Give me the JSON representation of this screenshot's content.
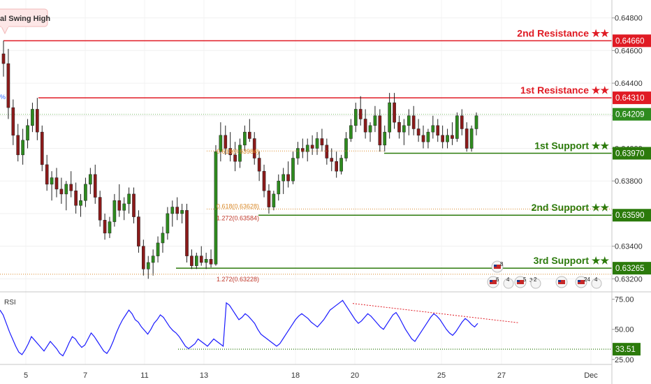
{
  "chart_data": {
    "type": "candlestick",
    "price_axis": {
      "ticks": [
        "0.64800",
        "0.64600",
        "0.64400",
        "0.64200",
        "0.64000",
        "0.63800",
        "0.63600",
        "0.63400",
        "0.63200"
      ],
      "visible_range": [
        0.6312,
        0.6491
      ]
    },
    "time_axis": {
      "ticks": [
        "5",
        "7",
        "11",
        "13",
        "18",
        "20",
        "25",
        "27",
        "Dec"
      ]
    },
    "levels": [
      {
        "label": "2nd Resistance ★★",
        "value": 0.6466,
        "price_tag": "0.64660",
        "color": "#e01b24",
        "role": "resistance"
      },
      {
        "label": "1st Resistance ★★",
        "value": 0.6431,
        "price_tag": "0.64310",
        "color": "#e01b24",
        "role": "resistance"
      },
      {
        "label": "1st Support ★★",
        "value": 0.6397,
        "price_tag": "0.63970",
        "color": "#2b7a0b",
        "role": "support"
      },
      {
        "label": "2nd Support ★★",
        "value": 0.6359,
        "price_tag": "0.63590",
        "color": "#2b7a0b",
        "role": "support"
      },
      {
        "label": "3rd Support ★★",
        "value": 0.63265,
        "price_tag": "0.63265",
        "color": "#2b7a0b",
        "role": "support"
      }
    ],
    "current_price": {
      "value": 0.64209,
      "price_tag": "0.64209",
      "color": "#2e8b1e"
    },
    "fib_labels": [
      {
        "text": "0.618(0.63984)",
        "color": "#d98a2b"
      },
      {
        "text": "0.618(0.63628)",
        "color": "#d98a2b"
      },
      {
        "text": "1.272(0.63584)",
        "color": "#c0392b"
      },
      {
        "text": "1.272(0.63228)",
        "color": "#c0392b"
      }
    ],
    "callout": {
      "text": "al Swing High"
    },
    "left_edge_marker": "%",
    "event_badges": [
      {
        "id": "e1",
        "count": "8"
      },
      {
        "id": "e2",
        "count": "6",
        "extra": "4"
      },
      {
        "id": "e3",
        "count": "5",
        "mid": "3",
        "extra": "2"
      },
      {
        "id": "e4",
        "count": ""
      },
      {
        "id": "e5",
        "count": "24",
        "extra": "4"
      }
    ],
    "rsi": {
      "label": "RSI",
      "ticks": [
        "75.00",
        "50.00",
        "25.00"
      ],
      "support_tag": "33.51",
      "support_value": 33.51,
      "line_color": "#1a1aff",
      "trendline_color": "#e01b24"
    },
    "candles": [
      [
        0.6458,
        0.6466,
        0.6444,
        0.6452
      ],
      [
        0.6452,
        0.6461,
        0.6418,
        0.6425
      ],
      [
        0.6425,
        0.643,
        0.6402,
        0.6408
      ],
      [
        0.6408,
        0.6415,
        0.6392,
        0.6396
      ],
      [
        0.6396,
        0.6412,
        0.639,
        0.6405
      ],
      [
        0.6405,
        0.6418,
        0.64,
        0.6414
      ],
      [
        0.6414,
        0.6428,
        0.641,
        0.6424
      ],
      [
        0.6424,
        0.6431,
        0.6405,
        0.641
      ],
      [
        0.641,
        0.6414,
        0.6386,
        0.639
      ],
      [
        0.639,
        0.6396,
        0.6374,
        0.6378
      ],
      [
        0.6378,
        0.6386,
        0.6368,
        0.6382
      ],
      [
        0.6382,
        0.6388,
        0.637,
        0.6375
      ],
      [
        0.6375,
        0.6382,
        0.6366,
        0.6372
      ],
      [
        0.6372,
        0.638,
        0.6362,
        0.6378
      ],
      [
        0.6378,
        0.6386,
        0.637,
        0.6374
      ],
      [
        0.6374,
        0.6379,
        0.636,
        0.6365
      ],
      [
        0.6365,
        0.6372,
        0.6358,
        0.6368
      ],
      [
        0.6368,
        0.6382,
        0.6364,
        0.6378
      ],
      [
        0.6378,
        0.6388,
        0.6372,
        0.6384
      ],
      [
        0.6384,
        0.639,
        0.6366,
        0.637
      ],
      [
        0.637,
        0.6374,
        0.6352,
        0.6356
      ],
      [
        0.6356,
        0.636,
        0.6344,
        0.6348
      ],
      [
        0.6348,
        0.6358,
        0.6345,
        0.6355
      ],
      [
        0.6355,
        0.6372,
        0.6352,
        0.6368
      ],
      [
        0.6368,
        0.6378,
        0.6358,
        0.6362
      ],
      [
        0.6362,
        0.637,
        0.6356,
        0.6366
      ],
      [
        0.6366,
        0.6376,
        0.636,
        0.6372
      ],
      [
        0.6372,
        0.6376,
        0.6354,
        0.6358
      ],
      [
        0.6358,
        0.6362,
        0.6336,
        0.634
      ],
      [
        0.634,
        0.6344,
        0.6322,
        0.6326
      ],
      [
        0.6326,
        0.6334,
        0.632,
        0.633
      ],
      [
        0.633,
        0.6338,
        0.6322,
        0.6334
      ],
      [
        0.6334,
        0.6346,
        0.633,
        0.6342
      ],
      [
        0.6342,
        0.6352,
        0.6336,
        0.6348
      ],
      [
        0.6348,
        0.6364,
        0.6344,
        0.636
      ],
      [
        0.636,
        0.6368,
        0.6352,
        0.6364
      ],
      [
        0.6364,
        0.637,
        0.6356,
        0.636
      ],
      [
        0.636,
        0.6366,
        0.6354,
        0.6362
      ],
      [
        0.6362,
        0.6366,
        0.633,
        0.6334
      ],
      [
        0.6334,
        0.6338,
        0.6326,
        0.6328
      ],
      [
        0.6328,
        0.6336,
        0.6326,
        0.6334
      ],
      [
        0.6334,
        0.634,
        0.6328,
        0.633
      ],
      [
        0.633,
        0.6336,
        0.6326,
        0.6332
      ],
      [
        0.6332,
        0.6338,
        0.6327,
        0.6329
      ],
      [
        0.6329,
        0.6402,
        0.6328,
        0.6398
      ],
      [
        0.6398,
        0.6416,
        0.6392,
        0.6408
      ],
      [
        0.6408,
        0.6414,
        0.6396,
        0.64
      ],
      [
        0.64,
        0.641,
        0.6392,
        0.6396
      ],
      [
        0.6396,
        0.6404,
        0.6386,
        0.6392
      ],
      [
        0.6392,
        0.6406,
        0.6388,
        0.6402
      ],
      [
        0.6402,
        0.6414,
        0.6398,
        0.641
      ],
      [
        0.641,
        0.6418,
        0.6404,
        0.6406
      ],
      [
        0.6406,
        0.641,
        0.639,
        0.6394
      ],
      [
        0.6394,
        0.6398,
        0.638,
        0.6386
      ],
      [
        0.6386,
        0.639,
        0.637,
        0.6374
      ],
      [
        0.6374,
        0.6378,
        0.636,
        0.6364
      ],
      [
        0.6364,
        0.6374,
        0.6362,
        0.6372
      ],
      [
        0.6372,
        0.6384,
        0.6368,
        0.638
      ],
      [
        0.638,
        0.6388,
        0.6372,
        0.6384
      ],
      [
        0.6384,
        0.6392,
        0.6376,
        0.638
      ],
      [
        0.638,
        0.6398,
        0.6378,
        0.6394
      ],
      [
        0.6394,
        0.6404,
        0.639,
        0.64
      ],
      [
        0.64,
        0.6406,
        0.6394,
        0.6398
      ],
      [
        0.6398,
        0.6406,
        0.6392,
        0.6402
      ],
      [
        0.6402,
        0.6408,
        0.6396,
        0.64
      ],
      [
        0.64,
        0.641,
        0.6396,
        0.6406
      ],
      [
        0.6406,
        0.6412,
        0.6398,
        0.6402
      ],
      [
        0.6402,
        0.6406,
        0.639,
        0.6394
      ],
      [
        0.6394,
        0.64,
        0.6386,
        0.6392
      ],
      [
        0.6392,
        0.6398,
        0.6382,
        0.6386
      ],
      [
        0.6386,
        0.6396,
        0.6384,
        0.6394
      ],
      [
        0.6394,
        0.641,
        0.6392,
        0.6406
      ],
      [
        0.6406,
        0.6418,
        0.6404,
        0.6414
      ],
      [
        0.6414,
        0.6428,
        0.641,
        0.6424
      ],
      [
        0.6424,
        0.6432,
        0.6414,
        0.6418
      ],
      [
        0.6418,
        0.6424,
        0.6406,
        0.641
      ],
      [
        0.641,
        0.6416,
        0.6404,
        0.6414
      ],
      [
        0.6414,
        0.6426,
        0.641,
        0.642
      ],
      [
        0.642,
        0.6424,
        0.6398,
        0.6402
      ],
      [
        0.6402,
        0.6414,
        0.6398,
        0.641
      ],
      [
        0.641,
        0.6434,
        0.6406,
        0.6428
      ],
      [
        0.6428,
        0.6434,
        0.6412,
        0.6416
      ],
      [
        0.6416,
        0.642,
        0.6406,
        0.641
      ],
      [
        0.641,
        0.6418,
        0.6402,
        0.6414
      ],
      [
        0.6414,
        0.6424,
        0.6408,
        0.642
      ],
      [
        0.642,
        0.6426,
        0.6408,
        0.6412
      ],
      [
        0.6412,
        0.6418,
        0.6404,
        0.6408
      ],
      [
        0.6408,
        0.6414,
        0.64,
        0.6404
      ],
      [
        0.6404,
        0.6412,
        0.64,
        0.641
      ],
      [
        0.641,
        0.642,
        0.6406,
        0.6414
      ],
      [
        0.6414,
        0.6418,
        0.6404,
        0.6408
      ],
      [
        0.6408,
        0.6414,
        0.64,
        0.6404
      ],
      [
        0.6404,
        0.6412,
        0.64,
        0.6408
      ],
      [
        0.6408,
        0.6416,
        0.6402,
        0.6406
      ],
      [
        0.6406,
        0.6422,
        0.6404,
        0.642
      ],
      [
        0.642,
        0.6424,
        0.6408,
        0.6412
      ],
      [
        0.6412,
        0.6416,
        0.6398,
        0.64
      ],
      [
        0.64,
        0.6414,
        0.6398,
        0.6412
      ],
      [
        0.6412,
        0.6422,
        0.6408,
        0.642
      ]
    ],
    "rsi_values": [
      66,
      62,
      55,
      48,
      42,
      36,
      31,
      29,
      33,
      38,
      44,
      41,
      38,
      35,
      32,
      36,
      40,
      37,
      34,
      30,
      28,
      33,
      39,
      44,
      42,
      38,
      35,
      37,
      42,
      47,
      44,
      40,
      36,
      32,
      30,
      34,
      40,
      47,
      53,
      58,
      62,
      66,
      63,
      58,
      56,
      52,
      49,
      46,
      50,
      55,
      58,
      62,
      60,
      56,
      52,
      49,
      47,
      44,
      40,
      36,
      34,
      36,
      38,
      42,
      40,
      38,
      36,
      39,
      42,
      40,
      38,
      36,
      72,
      70,
      66,
      62,
      58,
      60,
      63,
      61,
      58,
      55,
      50,
      46,
      44,
      42,
      40,
      38,
      36,
      38,
      42,
      46,
      50,
      54,
      58,
      61,
      63,
      61,
      59,
      56,
      54,
      52,
      55,
      58,
      62,
      66,
      68,
      70,
      72,
      74,
      70,
      66,
      62,
      58,
      55,
      57,
      60,
      63,
      61,
      58,
      55,
      52,
      50,
      54,
      58,
      62,
      64,
      60,
      55,
      50,
      46,
      42,
      40,
      44,
      48,
      52,
      56,
      60,
      63,
      61,
      58,
      54,
      50,
      47,
      45,
      48,
      52,
      56,
      59,
      57,
      54,
      52,
      55
    ],
    "rsi_support_start_frac": 0.287,
    "rsi_trend": {
      "from_frac": [
        0.587,
        71.5
      ],
      "to_frac": [
        0.86,
        55.5
      ]
    }
  }
}
